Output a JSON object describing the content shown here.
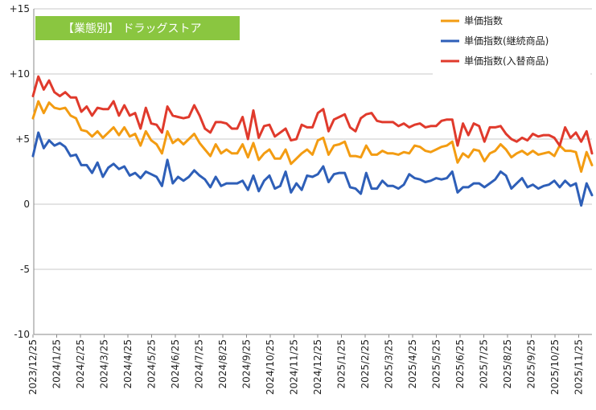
{
  "chart_data": {
    "type": "line",
    "tag_label": "【業態別】 ドラッグストア",
    "tag_color": "#8ac640",
    "ylim": [
      -10,
      15
    ],
    "yticks": [
      -10,
      -5,
      0,
      5,
      10,
      15
    ],
    "ytick_labels": [
      "-10",
      "-5",
      "0",
      "+5",
      "+10",
      "+15"
    ],
    "grid": true,
    "legend_position": "top-right",
    "x_tick_labels": [
      "2023/12/25",
      "2024/1/25",
      "2024/2/25",
      "2024/3/25",
      "2024/4/25",
      "2024/5/25",
      "2024/6/25",
      "2024/7/25",
      "2024/8/25",
      "2024/9/25",
      "2024/10/25",
      "2024/11/25",
      "2024/12/25",
      "2025/1/25",
      "2025/2/25",
      "2025/3/25",
      "2025/4/25",
      "2025/5/25",
      "2025/6/25",
      "2025/7/25",
      "2025/8/25",
      "2025/9/25",
      "2025/10/25",
      "2025/11/25"
    ],
    "series": [
      {
        "name": "単価指数",
        "color": "#f39c12",
        "values": [
          6.6,
          7.9,
          7.0,
          7.8,
          7.4,
          7.3,
          7.4,
          6.8,
          6.6,
          5.7,
          5.6,
          5.2,
          5.6,
          5.1,
          5.5,
          5.9,
          5.3,
          5.9,
          5.2,
          5.4,
          4.5,
          5.6,
          4.9,
          4.6,
          3.9,
          5.6,
          4.7,
          5.0,
          4.6,
          5.0,
          5.4,
          4.7,
          4.2,
          3.7,
          4.6,
          3.9,
          4.2,
          3.9,
          3.9,
          4.6,
          3.6,
          4.7,
          3.4,
          3.9,
          4.2,
          3.5,
          3.5,
          4.2,
          3.1,
          3.5,
          3.9,
          4.2,
          3.8,
          4.9,
          5.1,
          3.8,
          4.5,
          4.6,
          4.8,
          3.7,
          3.7,
          3.6,
          4.5,
          3.8,
          3.8,
          4.1,
          3.9,
          3.9,
          3.8,
          4.0,
          3.9,
          4.5,
          4.4,
          4.1,
          4.0,
          4.2,
          4.4,
          4.5,
          4.8,
          3.2,
          3.9,
          3.6,
          4.2,
          4.1,
          3.3,
          3.9,
          4.1,
          4.6,
          4.2,
          3.6,
          3.9,
          4.1,
          3.8,
          4.1,
          3.8,
          3.9,
          4.0,
          3.7,
          4.5,
          4.1,
          4.1,
          4.0,
          2.5,
          4.0,
          3.0
        ]
      },
      {
        "name": "単価指数(継続商品)",
        "color": "#2e5fb8",
        "values": [
          3.7,
          5.5,
          4.3,
          4.9,
          4.5,
          4.7,
          4.4,
          3.7,
          3.8,
          3.0,
          3.0,
          2.4,
          3.2,
          2.1,
          2.8,
          3.1,
          2.7,
          2.9,
          2.2,
          2.4,
          2.0,
          2.5,
          2.3,
          2.1,
          1.4,
          3.4,
          1.6,
          2.1,
          1.8,
          2.1,
          2.6,
          2.2,
          1.9,
          1.3,
          2.1,
          1.4,
          1.6,
          1.6,
          1.6,
          1.8,
          1.1,
          2.2,
          1.0,
          1.8,
          2.2,
          1.2,
          1.4,
          2.5,
          0.9,
          1.6,
          1.1,
          2.2,
          2.1,
          2.3,
          2.9,
          1.7,
          2.3,
          2.4,
          2.4,
          1.3,
          1.2,
          0.8,
          2.4,
          1.2,
          1.2,
          1.8,
          1.4,
          1.4,
          1.2,
          1.5,
          2.3,
          2.0,
          1.9,
          1.7,
          1.8,
          2.0,
          1.9,
          2.0,
          2.5,
          0.9,
          1.3,
          1.3,
          1.6,
          1.6,
          1.3,
          1.6,
          1.9,
          2.5,
          2.2,
          1.2,
          1.6,
          2.0,
          1.3,
          1.5,
          1.2,
          1.4,
          1.5,
          1.8,
          1.3,
          1.8,
          1.4,
          1.6,
          -0.1,
          1.6,
          0.7
        ]
      },
      {
        "name": "単価指数(入替商品)",
        "color": "#e03a2c",
        "values": [
          8.3,
          9.8,
          8.8,
          9.5,
          8.6,
          8.3,
          8.6,
          8.2,
          8.2,
          7.1,
          7.5,
          6.8,
          7.4,
          7.3,
          7.3,
          7.9,
          6.8,
          7.6,
          6.8,
          7.0,
          5.8,
          7.4,
          6.2,
          6.1,
          5.5,
          7.5,
          6.8,
          6.7,
          6.6,
          6.7,
          7.6,
          6.8,
          5.8,
          5.5,
          6.3,
          6.3,
          6.2,
          5.8,
          5.8,
          6.7,
          5.0,
          7.2,
          5.1,
          6.0,
          6.1,
          5.2,
          5.5,
          5.8,
          4.9,
          5.0,
          6.1,
          5.9,
          5.9,
          7.0,
          7.3,
          5.6,
          6.5,
          6.7,
          6.9,
          5.9,
          5.6,
          6.6,
          6.9,
          7.0,
          6.4,
          6.3,
          6.3,
          6.3,
          6.0,
          6.2,
          5.9,
          6.1,
          6.2,
          5.9,
          6.0,
          6.0,
          6.4,
          6.5,
          6.5,
          4.5,
          6.2,
          5.3,
          6.2,
          6.0,
          4.8,
          5.9,
          5.9,
          6.0,
          5.4,
          5.0,
          4.8,
          5.1,
          4.9,
          5.4,
          5.2,
          5.3,
          5.3,
          5.1,
          4.5,
          5.9,
          5.1,
          5.5,
          4.8,
          5.6,
          3.9
        ]
      }
    ]
  }
}
